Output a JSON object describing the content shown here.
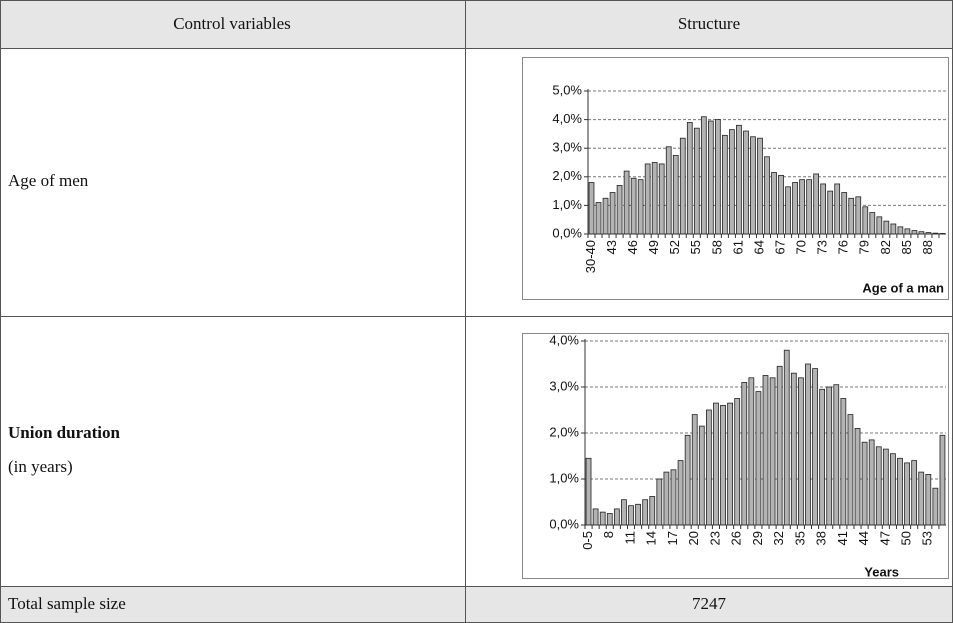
{
  "table": {
    "header": [
      "Control variables",
      "Structure"
    ],
    "rows": [
      {
        "label": "Age of men"
      },
      {
        "label": "Union duration",
        "note": "(in years)"
      }
    ],
    "footer": [
      "Total sample size",
      "7247"
    ]
  },
  "chart_data": [
    {
      "type": "bar",
      "xlabel": "Age of a man",
      "color": "#b3b3b3",
      "grid": true,
      "categories": [
        "30-40",
        null,
        null,
        "43",
        null,
        null,
        "46",
        null,
        null,
        "49",
        null,
        null,
        "52",
        null,
        null,
        "55",
        null,
        null,
        "58",
        null,
        null,
        "61",
        null,
        null,
        "64",
        null,
        null,
        "67",
        null,
        null,
        "70",
        null,
        null,
        "73",
        null,
        null,
        "76",
        null,
        null,
        "79",
        null,
        null,
        "82",
        null,
        null,
        "85",
        null,
        null,
        "88",
        null,
        null
      ],
      "values": [
        1.8,
        1.1,
        1.25,
        1.45,
        1.7,
        2.2,
        1.95,
        1.9,
        2.45,
        2.5,
        2.45,
        3.05,
        2.75,
        3.35,
        3.9,
        3.7,
        4.1,
        3.95,
        4.0,
        3.45,
        3.65,
        3.8,
        3.6,
        3.4,
        3.35,
        2.7,
        2.15,
        2.05,
        1.65,
        1.8,
        1.9,
        1.9,
        2.1,
        1.75,
        1.5,
        1.75,
        1.45,
        1.25,
        1.3,
        0.95,
        0.75,
        0.6,
        0.45,
        0.35,
        0.25,
        0.18,
        0.12,
        0.08,
        0.05,
        0.03,
        0.02
      ],
      "ylim": [
        0,
        5
      ],
      "yticks": [
        {
          "value": 0,
          "label": "0,0%"
        },
        {
          "value": 1,
          "label": "1,0%"
        },
        {
          "value": 2,
          "label": "2,0%"
        },
        {
          "value": 3,
          "label": "3,0%"
        },
        {
          "value": 4,
          "label": "4,0%"
        },
        {
          "value": 5,
          "label": "5,0%"
        }
      ]
    },
    {
      "type": "bar",
      "xlabel": "Years",
      "color": "#b3b3b3",
      "grid": true,
      "categories": [
        "0-5",
        null,
        null,
        "8",
        null,
        null,
        "11",
        null,
        null,
        "14",
        null,
        null,
        "17",
        null,
        null,
        "20",
        null,
        null,
        "23",
        null,
        null,
        "26",
        null,
        null,
        "29",
        null,
        null,
        "32",
        null,
        null,
        "35",
        null,
        null,
        "38",
        null,
        null,
        "41",
        null,
        null,
        "44",
        null,
        null,
        "47",
        null,
        null,
        "50",
        null,
        null,
        "53",
        null,
        null
      ],
      "values": [
        1.45,
        0.35,
        0.28,
        0.25,
        0.35,
        0.55,
        0.42,
        0.45,
        0.55,
        0.62,
        1.0,
        1.15,
        1.2,
        1.4,
        1.95,
        2.4,
        2.15,
        2.5,
        2.65,
        2.6,
        2.65,
        2.75,
        3.1,
        3.2,
        2.9,
        3.25,
        3.2,
        3.45,
        3.8,
        3.3,
        3.2,
        3.5,
        3.4,
        2.95,
        3.0,
        3.05,
        2.75,
        2.4,
        2.1,
        1.8,
        1.85,
        1.7,
        1.65,
        1.55,
        1.45,
        1.35,
        1.4,
        1.15,
        1.1,
        0.8,
        1.95
      ],
      "ylim": [
        0,
        4
      ],
      "yticks": [
        {
          "value": 0,
          "label": "0,0%"
        },
        {
          "value": 1,
          "label": "1,0%"
        },
        {
          "value": 2,
          "label": "2,0%"
        },
        {
          "value": 3,
          "label": "3,0%"
        },
        {
          "value": 4,
          "label": "4,0%"
        }
      ]
    }
  ]
}
